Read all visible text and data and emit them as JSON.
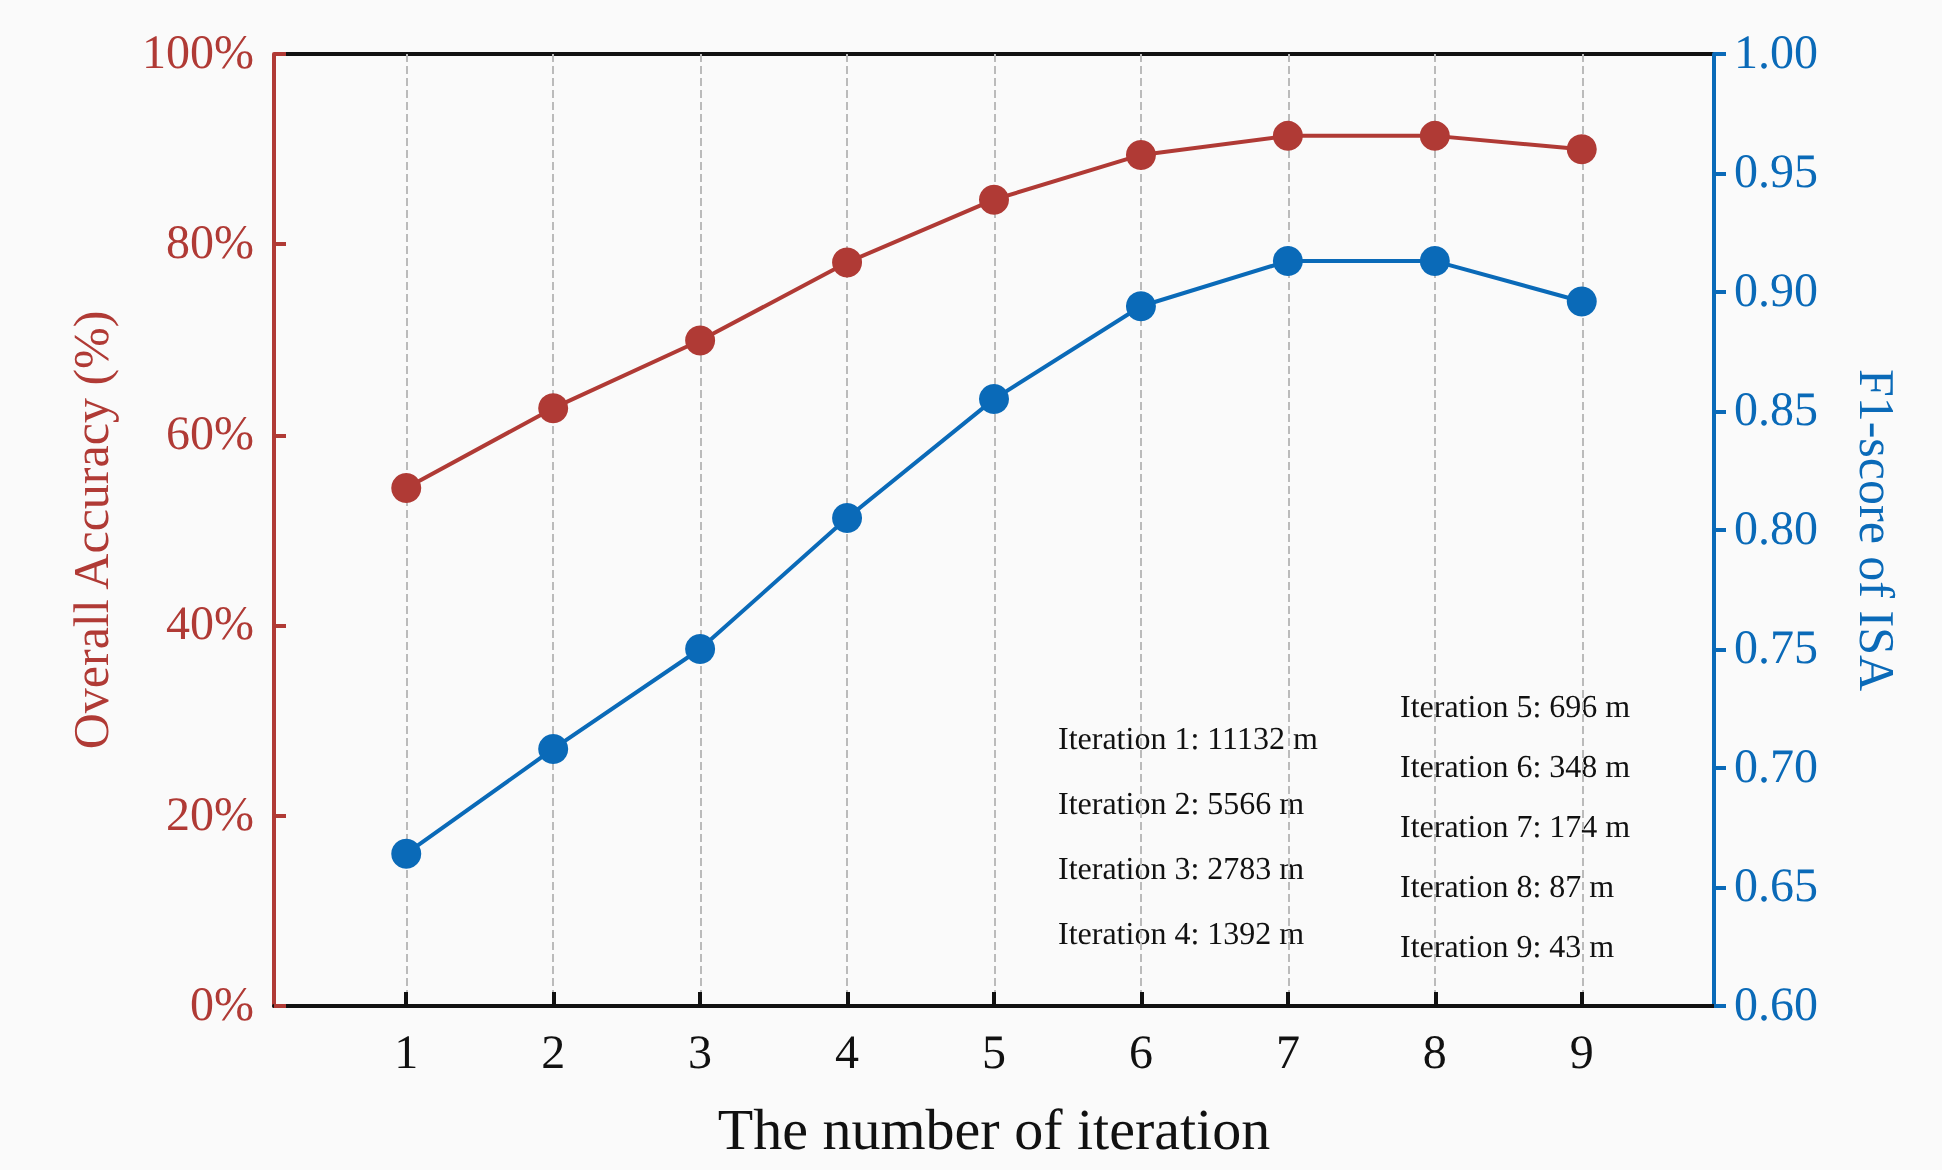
{
  "chart_data": {
    "type": "line",
    "xlabel": "The number of iteration",
    "ylabel": "Overall Accuracy (%)",
    "y2label": "F1-score of ISA",
    "x": [
      1,
      2,
      3,
      4,
      5,
      6,
      7,
      8,
      9
    ],
    "xlim": [
      0.1,
      9.9
    ],
    "xticks": [
      1,
      2,
      3,
      4,
      5,
      6,
      7,
      8,
      9
    ],
    "ylim": [
      0,
      100
    ],
    "yticks": [
      {
        "value": 0,
        "label": "0%"
      },
      {
        "value": 20,
        "label": "20%"
      },
      {
        "value": 40,
        "label": "40%"
      },
      {
        "value": 60,
        "label": "60%"
      },
      {
        "value": 80,
        "label": "80%"
      },
      {
        "value": 100,
        "label": "100%"
      }
    ],
    "y2lim": [
      0.6,
      1.0
    ],
    "y2ticks": [
      {
        "value": 0.6,
        "label": "0.60"
      },
      {
        "value": 0.65,
        "label": "0.65"
      },
      {
        "value": 0.7,
        "label": "0.70"
      },
      {
        "value": 0.75,
        "label": "0.75"
      },
      {
        "value": 0.8,
        "label": "0.80"
      },
      {
        "value": 0.85,
        "label": "0.85"
      },
      {
        "value": 0.9,
        "label": "0.90"
      },
      {
        "value": 0.95,
        "label": "0.95"
      },
      {
        "value": 1.0,
        "label": "1.00"
      }
    ],
    "series": [
      {
        "color": "#b03a35",
        "values": [
          54.4,
          62.8,
          69.9,
          78.1,
          84.7,
          89.4,
          91.4,
          91.4,
          90.0
        ]
      },
      {
        "color": "#0a6ab8",
        "axis": "y2",
        "values": [
          0.664,
          0.708,
          0.75,
          0.805,
          0.855,
          0.894,
          0.913,
          0.913,
          0.896
        ]
      }
    ],
    "annotations": [
      "Iteration 1: 11132 m",
      "Iteration 2: 5566 m",
      "Iteration 3: 2783 m",
      "Iteration 4: 1392 m",
      "Iteration 5: 696 m",
      "Iteration 6: 348 m",
      "Iteration 7: 174 m",
      "Iteration 8: 87 m",
      "Iteration 9: 43 m"
    ],
    "grid": "x",
    "marker": "circle",
    "line_style": "solid"
  }
}
